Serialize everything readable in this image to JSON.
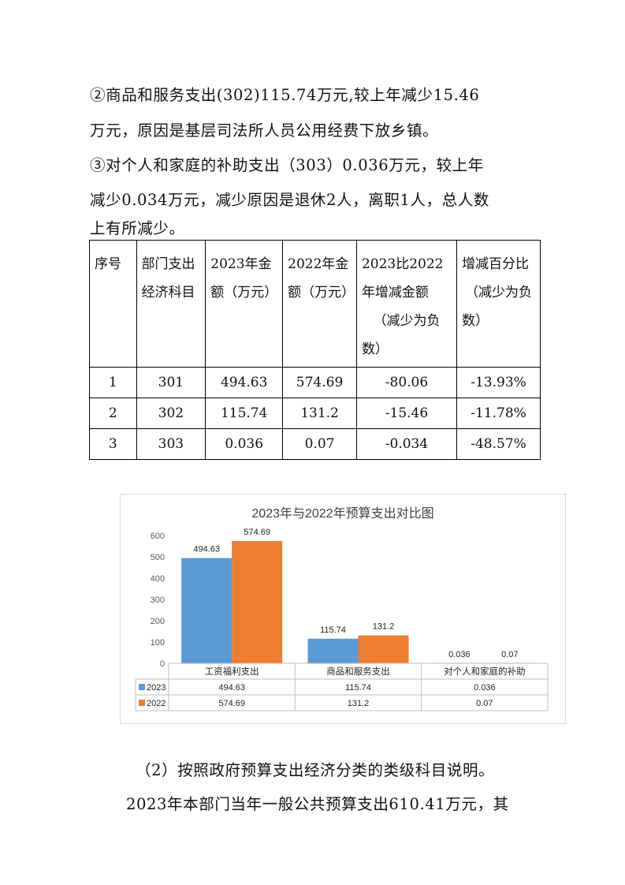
{
  "paragraphs": {
    "p1_line1": "②商品和服务支出(302)115.74万元,较上年减少15.46",
    "p1_line2": "万元，原因是基层司法所人员公用经费下放乡镇。",
    "p2_line1": "③对个人和家庭的补助支出（303）0.036万元，较上年",
    "p2_line2": "减少0.034万元，减少原因是退休2人，离职1人，总人数",
    "p2_line3": "上有所减少。",
    "p3_line1": "（2）按照政府预算支出经济分类的类级科目说明。",
    "p4_line1": "2023年本部门当年一般公共预算支出610.41万元，其"
  },
  "table": {
    "headers": [
      [
        "序号"
      ],
      [
        "部门支出",
        "经济科目"
      ],
      [
        "2023年金",
        "额（万元）"
      ],
      [
        "2022年金",
        "额（万元）"
      ],
      [
        "2023比2022",
        "年增减金额",
        "（减少为负",
        "数）"
      ],
      [
        "增减百分比",
        "（减少为负",
        "数）"
      ]
    ],
    "rows": [
      [
        "1",
        "301",
        "494.63",
        "574.69",
        "-80.06",
        "-13.93%"
      ],
      [
        "2",
        "302",
        "115.74",
        "131.2",
        "-15.46",
        "-11.78%"
      ],
      [
        "3",
        "303",
        "0.036",
        "0.07",
        "-0.034",
        "-48.57%"
      ]
    ]
  },
  "chart_data": {
    "type": "bar",
    "title": "2023年与2022年预算支出对比图",
    "categories": [
      "工资福利支出",
      "商品和服务支出",
      "对个人和家庭的补助"
    ],
    "series": [
      {
        "name": "2023",
        "values": [
          494.63,
          115.74,
          0.036
        ],
        "labels": [
          "494.63",
          "115.74",
          "0.036"
        ],
        "color": "#5b9bd5"
      },
      {
        "name": "2022",
        "values": [
          574.69,
          131.2,
          0.07
        ],
        "labels": [
          "574.69",
          "131.2",
          "0.07"
        ],
        "color": "#ed7d31"
      }
    ],
    "yticks": [
      "0",
      "100",
      "200",
      "300",
      "400",
      "500",
      "600"
    ],
    "ylim": [
      0,
      600
    ],
    "grid": false,
    "legend": "data-table"
  }
}
